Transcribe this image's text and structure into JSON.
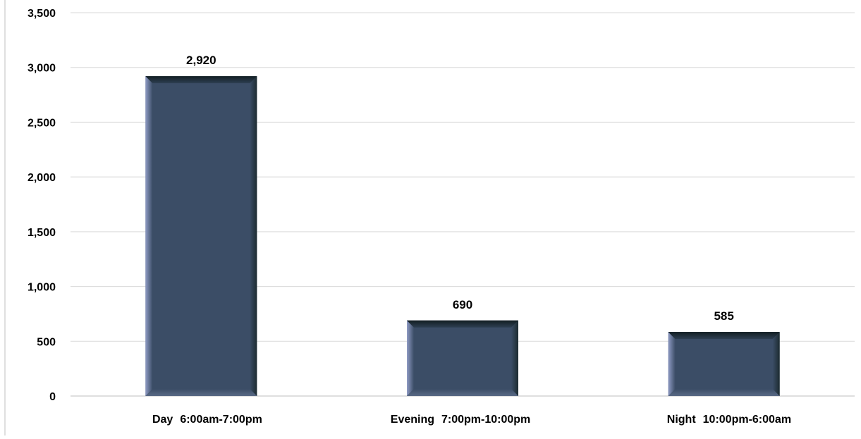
{
  "chart_data": {
    "type": "bar",
    "title": "",
    "xlabel": "",
    "ylabel": "",
    "ylim": [
      0,
      3500
    ],
    "yticks": [
      0,
      500,
      1000,
      1500,
      2000,
      2500,
      3000,
      3500
    ],
    "ytick_labels": [
      "0",
      "500",
      "1,000",
      "1,500",
      "2,000",
      "2,500",
      "3,000",
      "3,500"
    ],
    "grid": true,
    "legend": "none",
    "categories": [
      {
        "name": "Day",
        "time": "6:00am-7:00pm"
      },
      {
        "name": "Evening",
        "time": "7:00pm-10:00pm"
      },
      {
        "name": "Night",
        "time": "10:00pm-6:00am"
      }
    ],
    "values": [
      2920,
      690,
      585
    ],
    "value_labels": [
      "2,920",
      "690",
      "585"
    ],
    "colors": {
      "bar_face": "#3b4d66",
      "bar_bevel_light": "#7582ad",
      "bar_bevel_dark": "#1a2a33",
      "gridline": "#d9d9d9",
      "axis": "#bfbfbf"
    }
  }
}
